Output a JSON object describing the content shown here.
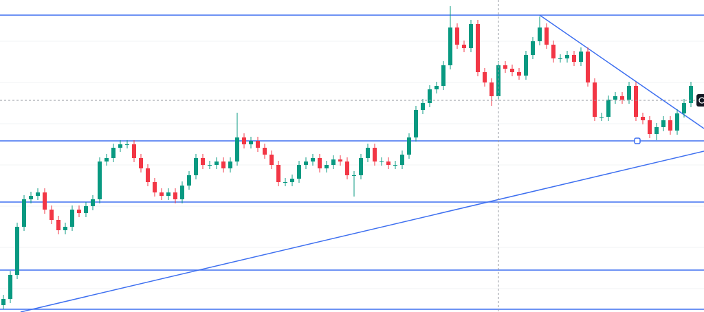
{
  "chart_data": {
    "type": "candlestick",
    "up_color": "#089981",
    "down_color": "#f23645",
    "line_color": "#3d6ff0",
    "xlim": [
      -0.5,
      101.9
    ],
    "ylim": [
      0,
      454
    ],
    "open": [
      10,
      19,
      54,
      124,
      164,
      169,
      174,
      149,
      134,
      119,
      124,
      149,
      144,
      154,
      164,
      219,
      224,
      239,
      244,
      244,
      224,
      209,
      189,
      174,
      169,
      174,
      164,
      184,
      199,
      224,
      214,
      214,
      219,
      209,
      219,
      254,
      244,
      249,
      239,
      229,
      214,
      189,
      189,
      194,
      214,
      219,
      224,
      209,
      214,
      222,
      219,
      199,
      199,
      224,
      239,
      219,
      219,
      214,
      214,
      229,
      254,
      294,
      304,
      324,
      329,
      359,
      414,
      389,
      384,
      419,
      349,
      334,
      314,
      359,
      354,
      349,
      344,
      374,
      394,
      414,
      389,
      369,
      369,
      374,
      364,
      379,
      334,
      284,
      284,
      309,
      314,
      309,
      329,
      284,
      279,
      259,
      269,
      279,
      264,
      289,
      304
    ],
    "high": [
      25,
      60,
      130,
      170,
      175,
      180,
      180,
      155,
      140,
      130,
      155,
      155,
      160,
      170,
      225,
      230,
      245,
      250,
      250,
      250,
      230,
      215,
      195,
      180,
      180,
      180,
      190,
      205,
      230,
      230,
      220,
      225,
      225,
      225,
      290,
      260,
      255,
      255,
      245,
      235,
      220,
      195,
      200,
      220,
      225,
      230,
      230,
      220,
      228,
      228,
      225,
      205,
      230,
      245,
      245,
      225,
      225,
      220,
      235,
      260,
      300,
      310,
      330,
      335,
      365,
      445,
      420,
      395,
      425,
      425,
      355,
      340,
      365,
      365,
      360,
      355,
      380,
      400,
      430,
      420,
      395,
      375,
      380,
      380,
      385,
      385,
      340,
      290,
      315,
      320,
      320,
      335,
      335,
      290,
      285,
      275,
      285,
      285,
      295,
      310,
      335
    ],
    "low": [
      4,
      13,
      48,
      118,
      158,
      163,
      143,
      128,
      113,
      113,
      118,
      138,
      138,
      148,
      158,
      213,
      218,
      233,
      238,
      218,
      203,
      183,
      168,
      163,
      163,
      158,
      158,
      178,
      193,
      208,
      208,
      208,
      203,
      203,
      213,
      238,
      238,
      233,
      223,
      208,
      183,
      183,
      183,
      188,
      208,
      213,
      203,
      203,
      208,
      213,
      193,
      168,
      193,
      218,
      213,
      213,
      208,
      208,
      208,
      223,
      248,
      288,
      298,
      318,
      323,
      353,
      383,
      378,
      378,
      343,
      328,
      300,
      308,
      348,
      343,
      338,
      338,
      368,
      388,
      383,
      363,
      363,
      363,
      358,
      358,
      328,
      278,
      278,
      278,
      303,
      303,
      303,
      278,
      273,
      253,
      250,
      263,
      258,
      258,
      283,
      298
    ],
    "close": [
      19,
      54,
      124,
      164,
      169,
      174,
      149,
      134,
      119,
      124,
      149,
      144,
      154,
      164,
      219,
      224,
      239,
      244,
      244,
      224,
      209,
      189,
      174,
      169,
      174,
      164,
      184,
      199,
      224,
      214,
      214,
      219,
      209,
      219,
      254,
      244,
      249,
      239,
      229,
      214,
      189,
      189,
      194,
      214,
      219,
      224,
      209,
      214,
      222,
      219,
      199,
      199,
      224,
      239,
      219,
      219,
      214,
      214,
      229,
      254,
      294,
      304,
      324,
      329,
      359,
      414,
      389,
      384,
      419,
      349,
      334,
      314,
      359,
      354,
      349,
      344,
      374,
      394,
      414,
      389,
      369,
      369,
      374,
      364,
      379,
      334,
      284,
      284,
      309,
      314,
      309,
      329,
      284,
      279,
      259,
      269,
      279,
      264,
      289,
      304,
      329
    ],
    "hlines": [
      432,
      249,
      160,
      61,
      4
    ],
    "trendlines": [
      {
        "x": [
          2.5,
          101.9
        ],
        "y": [
          0,
          234
        ]
      },
      {
        "x": [
          78,
          101.9
        ],
        "y": [
          432,
          267
        ]
      }
    ]
  }
}
